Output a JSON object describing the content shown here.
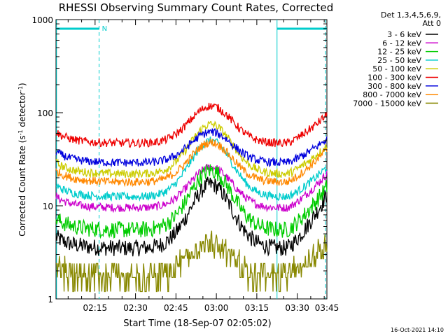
{
  "chart_data": {
    "type": "line",
    "title": "RHESSI Observing Summary Count Rates, Corrected",
    "xlabel": "Start Time (18-Sep-07 02:05:02)",
    "ylabel_main": "Corrected Count Rate (s",
    "ylabel_sup1": "-1",
    "ylabel_mid": " detector",
    "ylabel_sup2": "-1",
    "ylabel_end": ")",
    "yscale": "log",
    "ylim": [
      1,
      1000
    ],
    "yticks": [
      "1",
      "10",
      "100",
      "1000"
    ],
    "xlim_minutes": [
      0.5,
      101
    ],
    "xticks": [
      {
        "label": "02:15",
        "minute": 15
      },
      {
        "label": "02:30",
        "minute": 30
      },
      {
        "label": "02:45",
        "minute": 45
      },
      {
        "label": "03:00",
        "minute": 60
      },
      {
        "label": "03:15",
        "minute": 75
      },
      {
        "label": "03:30",
        "minute": 90
      },
      {
        "label": "03:45",
        "minute": 105
      }
    ],
    "legend_header": [
      "Det 1,3,4,5,6,9,",
      "Att 0"
    ],
    "legend_position": "right",
    "footer_date": "16-Oct-2021 14:10",
    "night_marker": "N",
    "series": [
      {
        "name": "3 - 6 keV",
        "color": "#000000",
        "base": 3.5,
        "peak": 17,
        "end": 13
      },
      {
        "name": "6 - 12 keV",
        "color": "#cc00cc",
        "base": 9.5,
        "peak": 26,
        "end": 22
      },
      {
        "name": "12 - 25 keV",
        "color": "#00cc00",
        "base": 5.5,
        "peak": 24,
        "end": 16
      },
      {
        "name": "25 - 50 keV",
        "color": "#00cccc",
        "base": 12.5,
        "peak": 50,
        "end": 26
      },
      {
        "name": "50 - 100 keV",
        "color": "#cccc00",
        "base": 22,
        "peak": 75,
        "end": 44
      },
      {
        "name": "100 - 300 keV",
        "color": "#ee0000",
        "base": 47,
        "peak": 118,
        "end": 95
      },
      {
        "name": "300 - 800 keV",
        "color": "#0000dd",
        "base": 29,
        "peak": 62,
        "end": 52
      },
      {
        "name": "800 - 7000 keV",
        "color": "#ff8800",
        "base": 18,
        "peak": 48,
        "end": 40
      },
      {
        "name": "7000 - 15000 keV",
        "color": "#888800",
        "base": 1.7,
        "peak": 4,
        "end": 4
      }
    ],
    "night_intervals_minutes": [
      [
        0.5,
        16.5
      ],
      [
        82.5,
        101
      ]
    ],
    "dashed_markers_minutes": [
      16.5,
      100.5
    ]
  }
}
